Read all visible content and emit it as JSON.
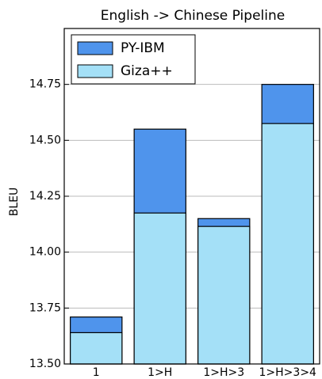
{
  "chart_data": {
    "type": "bar",
    "title": "English -> Chinese Pipeline",
    "y_label": "BLEU",
    "categories": [
      "1",
      "1>H",
      "1>H>3",
      "1>H>3>4"
    ],
    "series": [
      {
        "name": "PY-IBM",
        "color": "#4f94ec",
        "values": [
          13.71,
          14.55,
          14.15,
          14.75
        ]
      },
      {
        "name": "Giza++",
        "color": "#a4e0f7",
        "values": [
          13.64,
          14.175,
          14.115,
          14.575
        ]
      }
    ],
    "ylim": [
      13.5,
      15.0
    ],
    "yticks": [
      {
        "value": 13.5,
        "label": "13.50"
      },
      13.75,
      {
        "value": 14.0,
        "label": "14.00"
      },
      14.25,
      {
        "value": 14.5,
        "label": "14.50"
      },
      14.75
    ],
    "grid": true,
    "legend": "upper left"
  }
}
